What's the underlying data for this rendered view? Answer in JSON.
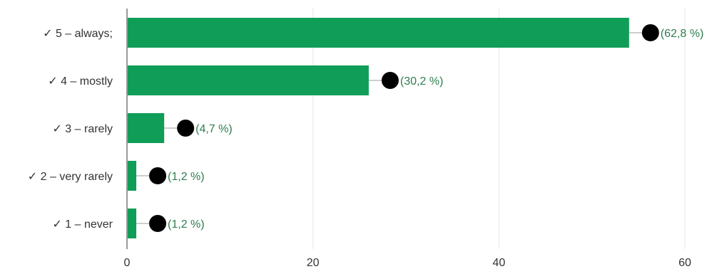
{
  "chart_data": {
    "type": "bar",
    "orientation": "horizontal",
    "categories": [
      "✓ 5 – always;",
      "✓ 4 – mostly",
      "✓ 3 – rarely",
      "✓ 2 – very rarely",
      "✓ 1 – never"
    ],
    "values": [
      54,
      26,
      4,
      1,
      1
    ],
    "data_labels": [
      "(62,8 %)",
      "(30,2 %)",
      "(4,7 %)",
      "(1,2 %)",
      "(1,2 %)"
    ],
    "xlim": [
      0,
      60
    ],
    "xticks": [
      "0",
      "20",
      "40",
      "60"
    ],
    "xtick_values": [
      0,
      20,
      40,
      60
    ],
    "grid": true,
    "bar_color": "#0f9d58",
    "grid_color": "#e6e6e6",
    "axis_color": "#333333",
    "label_color": "#2e7d4f",
    "marker_color": "#000000"
  }
}
